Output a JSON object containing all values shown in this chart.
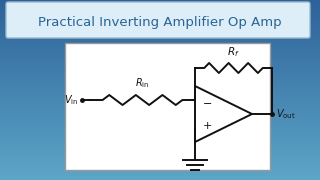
{
  "title": "Practical Inverting Amplifier Op Amp",
  "title_color": "#2a6496",
  "title_bg_top": "#c8dff0",
  "title_bg_bot": "#e8f4fc",
  "bg_color_top": "#2060a0",
  "bg_color_bot": "#4a9fcf",
  "circuit_bg": "#ffffff",
  "circuit_border": "#aaaaaa",
  "line_color": "#111111",
  "label_color": "#111111",
  "lw": 1.4
}
